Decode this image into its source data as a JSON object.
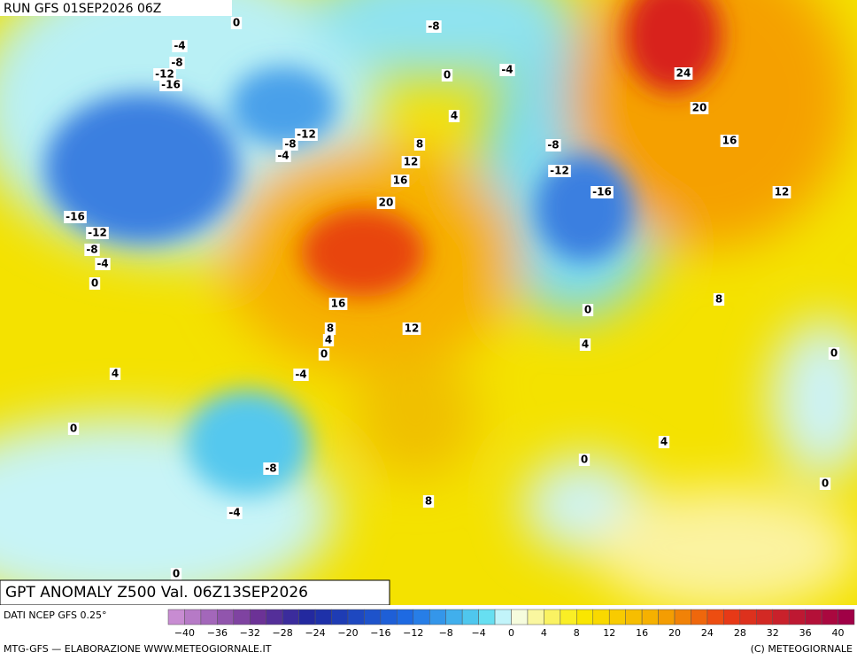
{
  "header": {
    "run": "RUN GFS 01SEP2026 06Z"
  },
  "title": "GPT ANOMALY Z500 Val. 06Z13SEP2026",
  "source": "DATI NCEP GFS 0.25°",
  "colorbar": {
    "labels": [
      "−40",
      "−36",
      "−32",
      "−28",
      "−24",
      "−20",
      "−16",
      "−12",
      "−8",
      "−4",
      "0",
      "4",
      "8",
      "12",
      "16",
      "20",
      "24",
      "28",
      "32",
      "36",
      "40"
    ]
  },
  "footer": {
    "left": "MTG-GFS — ELABORAZIONE WWW.METEOGIORNALE.IT",
    "right": "(C) METEOGIORNALE"
  },
  "contour_labels": [
    "0",
    "-8",
    "-4",
    "-8",
    "-12",
    "-16",
    "0",
    "-4",
    "24",
    "4",
    "20",
    "-12",
    "-8",
    "-4",
    "8",
    "-8",
    "16",
    "12",
    "-12",
    "16",
    "-16",
    "12",
    "20",
    "-16",
    "-12",
    "-8",
    "-4",
    "0",
    "16",
    "8",
    "0",
    "12",
    "8",
    "4",
    "4",
    "0",
    "0",
    "4",
    "-4",
    "0",
    "4",
    "0",
    "-8",
    "0",
    "8",
    "-4",
    "0"
  ]
}
